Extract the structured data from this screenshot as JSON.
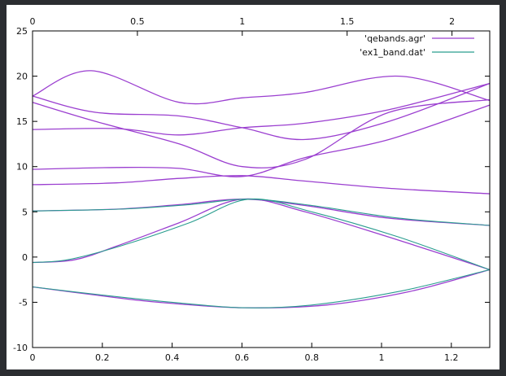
{
  "chart_data": {
    "type": "line",
    "title": "",
    "xlabel": "",
    "ylabel": "",
    "x_bottom": {
      "range": [
        0,
        1.31
      ],
      "ticks": [
        0,
        0.2,
        0.4,
        0.6,
        0.8,
        1,
        1.2
      ]
    },
    "x_top": {
      "range": [
        0,
        2.18
      ],
      "ticks": [
        0,
        0.5,
        1,
        1.5,
        2
      ]
    },
    "ylim": [
      -10,
      25
    ],
    "yticks": [
      -10,
      -5,
      0,
      5,
      10,
      15,
      20,
      25
    ],
    "grid": false,
    "legend": "top-right",
    "colors": {
      "qebands": "#9b3fd0",
      "ex1": "#2a9d8f"
    },
    "series": [
      {
        "name": "'qebands.agr'",
        "axis": "top",
        "color": "#9b3fd0",
        "bands": [
          [
            [
              0,
              -3.3
            ],
            [
              0.3,
              -4.2
            ],
            [
              0.6,
              -5
            ],
            [
              1,
              -5.6
            ],
            [
              1.4,
              -5.3
            ],
            [
              1.8,
              -3.8
            ],
            [
              2.18,
              -1.4
            ]
          ],
          [
            [
              0,
              -0.6
            ],
            [
              0.2,
              -0.3
            ],
            [
              0.4,
              1.2
            ],
            [
              0.7,
              3.8
            ],
            [
              1,
              6.4
            ],
            [
              1.3,
              5
            ],
            [
              1.7,
              2.2
            ],
            [
              2.18,
              -1.4
            ]
          ],
          [
            [
              0,
              5.1
            ],
            [
              0.4,
              5.3
            ],
            [
              0.7,
              5.8
            ],
            [
              1,
              6.4
            ],
            [
              1.3,
              5.7
            ],
            [
              1.7,
              4.3
            ],
            [
              2.18,
              3.5
            ]
          ],
          [
            [
              0,
              8
            ],
            [
              0.4,
              8.2
            ],
            [
              0.7,
              8.7
            ],
            [
              1,
              9
            ],
            [
              1.3,
              8.4
            ],
            [
              1.7,
              7.6
            ],
            [
              2.18,
              7
            ]
          ],
          [
            [
              0,
              9.7
            ],
            [
              0.4,
              9.9
            ],
            [
              0.7,
              9.8
            ],
            [
              1,
              8.9
            ],
            [
              1.3,
              11
            ],
            [
              1.7,
              13
            ],
            [
              2.18,
              16.8
            ]
          ],
          [
            [
              0,
              14.1
            ],
            [
              0.4,
              14.2
            ],
            [
              0.7,
              13.5
            ],
            [
              1,
              14.3
            ],
            [
              1.3,
              14.8
            ],
            [
              1.7,
              16.3
            ],
            [
              2.18,
              19.2
            ]
          ],
          [
            [
              0,
              17.1
            ],
            [
              0.3,
              15
            ],
            [
              0.7,
              12.5
            ],
            [
              1,
              10
            ],
            [
              1.3,
              10.8
            ],
            [
              1.7,
              16
            ],
            [
              2.18,
              17.4
            ]
          ],
          [
            [
              0,
              17.8
            ],
            [
              0.3,
              16
            ],
            [
              0.7,
              15.6
            ],
            [
              1,
              14.3
            ],
            [
              1.3,
              13
            ],
            [
              1.7,
              15
            ],
            [
              2.18,
              19.2
            ]
          ],
          [
            [
              0,
              17.8
            ],
            [
              0.28,
              20.6
            ],
            [
              0.7,
              17.1
            ],
            [
              1,
              17.6
            ],
            [
              1.3,
              18.2
            ],
            [
              1.75,
              20
            ],
            [
              2.18,
              17.3
            ]
          ]
        ]
      },
      {
        "name": "'ex1_band.dat'",
        "axis": "bottom",
        "color": "#2a9d8f",
        "bands": [
          [
            [
              0,
              -3.3
            ],
            [
              0.2,
              -4.2
            ],
            [
              0.4,
              -5
            ],
            [
              0.6,
              -5.6
            ],
            [
              0.8,
              -5.3
            ],
            [
              1.05,
              -3.8
            ],
            [
              1.31,
              -1.4
            ]
          ],
          [
            [
              0,
              -0.6
            ],
            [
              0.1,
              -0.3
            ],
            [
              0.25,
              1.2
            ],
            [
              0.45,
              3.8
            ],
            [
              0.62,
              6.4
            ],
            [
              0.8,
              5
            ],
            [
              1.05,
              2.2
            ],
            [
              1.31,
              -1.4
            ]
          ],
          [
            [
              0,
              5.1
            ],
            [
              0.25,
              5.3
            ],
            [
              0.45,
              5.8
            ],
            [
              0.62,
              6.4
            ],
            [
              0.8,
              5.7
            ],
            [
              1.05,
              4.3
            ],
            [
              1.31,
              3.5
            ]
          ]
        ]
      }
    ]
  }
}
